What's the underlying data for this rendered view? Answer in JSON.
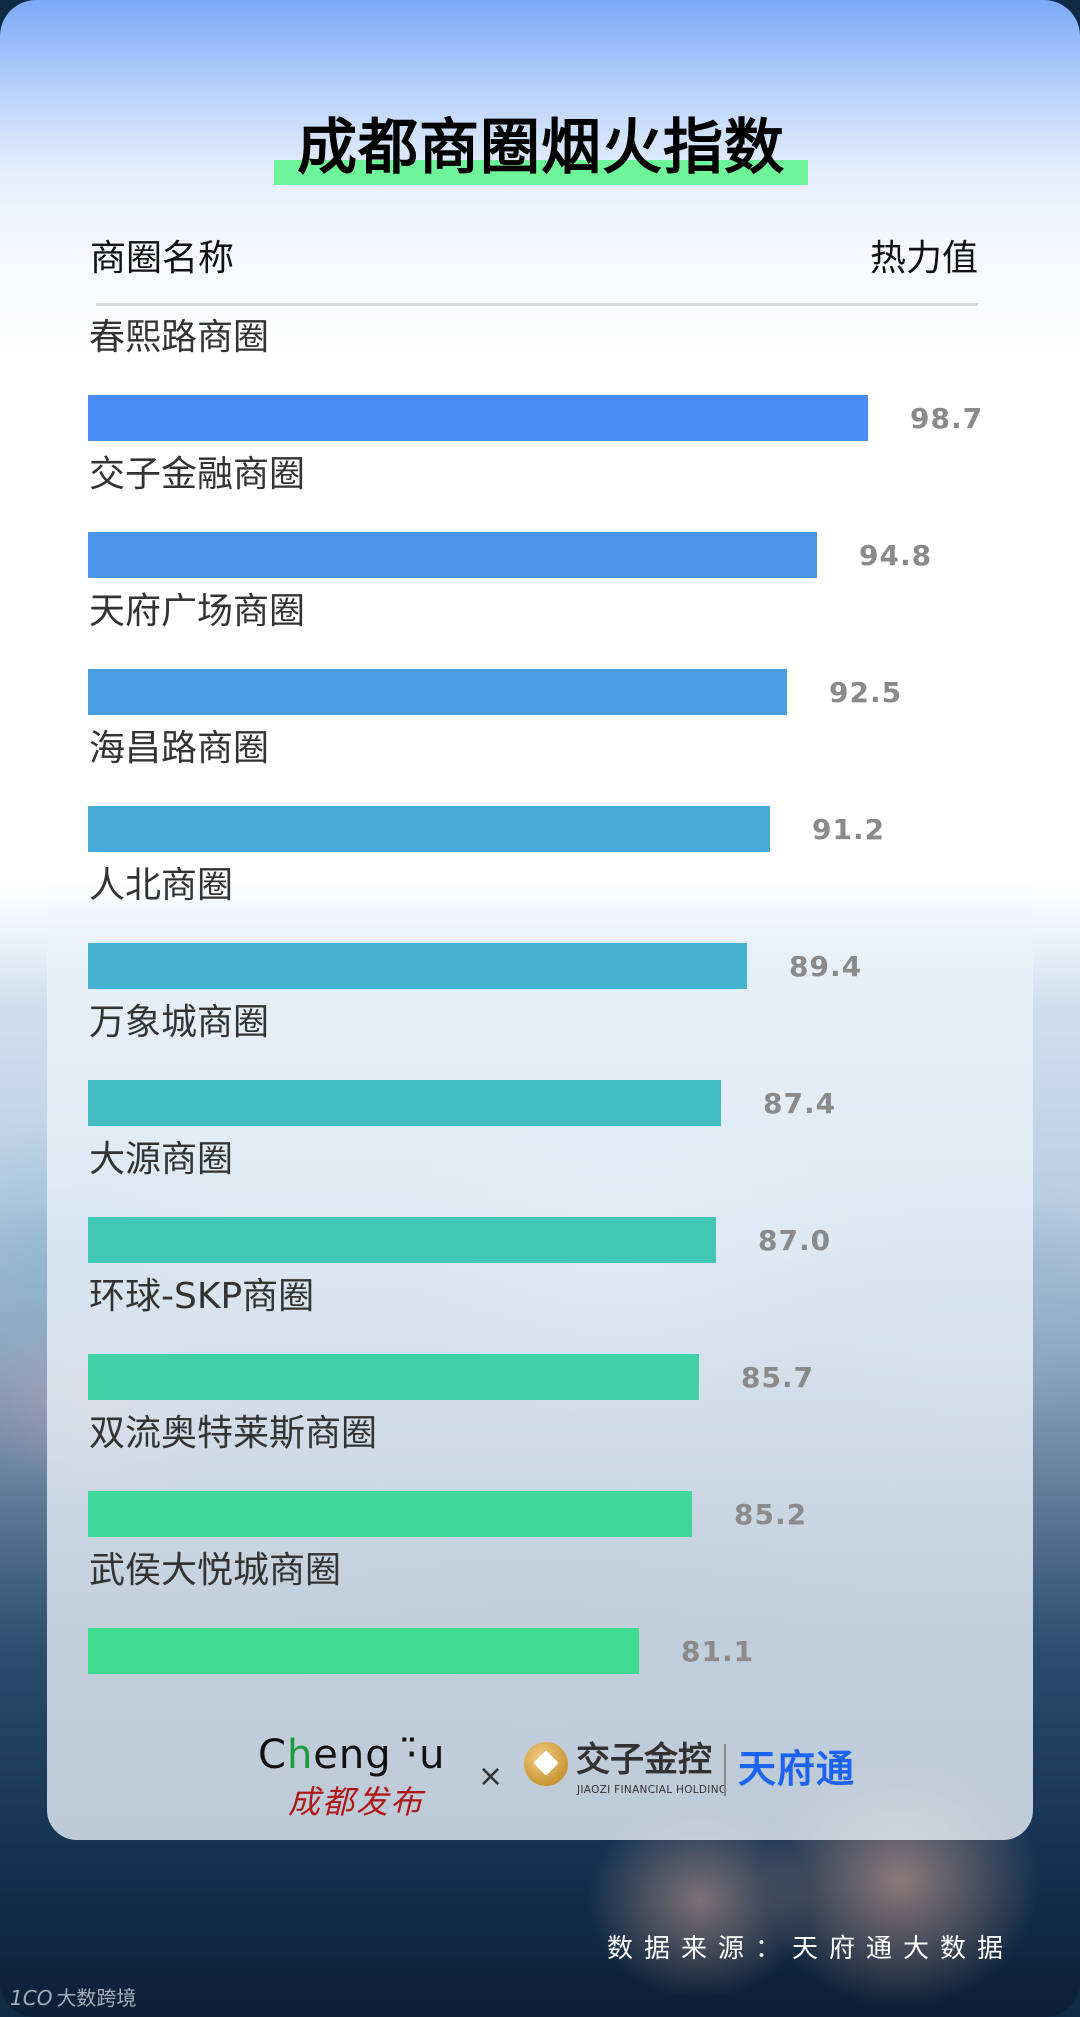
{
  "title": "成都商圈烟火指数",
  "header": {
    "name_col": "商圈名称",
    "value_col": "热力值"
  },
  "rows": [
    {
      "name": "春熙路商圈",
      "value": "98.7",
      "color": "#4a8cf5"
    },
    {
      "name": "交子金融商圈",
      "value": "94.8",
      "color": "#4a94ea"
    },
    {
      "name": "天府广场商圈",
      "value": "92.5",
      "color": "#4a9fe3"
    },
    {
      "name": "海昌路商圈",
      "value": "91.2",
      "color": "#47a9d8"
    },
    {
      "name": "人北商圈",
      "value": "89.4",
      "color": "#45b2cf"
    },
    {
      "name": "万象城商圈",
      "value": "87.4",
      "color": "#43bdc2"
    },
    {
      "name": "大源商圈",
      "value": "87.0",
      "color": "#40c7b6"
    },
    {
      "name": "环球-SKP商圈",
      "value": "85.7",
      "color": "#3fd0a4"
    },
    {
      "name": "双流奥特莱斯商圈",
      "value": "85.2",
      "color": "#3fd89a"
    },
    {
      "name": "武侯大悦城商圈",
      "value": "81.1",
      "color": "#3fdb90"
    }
  ],
  "logos": {
    "chengdu_en_prefix": "C",
    "chengdu_en_h": "h",
    "chengdu_en_rest": "eng ·̈u",
    "chengdu_cn": "成都发布",
    "times": "×",
    "jiaozi_name": "交子金控",
    "jiaozi_sub": "JIAOZI FINANCIAL HOLDING",
    "tianfutong": "天府通"
  },
  "footer": {
    "source": "数据来源：天府通大数据"
  },
  "watermark": {
    "logo": "1CO",
    "text": "大数跨境"
  },
  "chart_data": {
    "type": "bar",
    "orientation": "horizontal",
    "title": "成都商圈烟火指数",
    "xlabel": "热力值",
    "ylabel": "商圈名称",
    "categories": [
      "春熙路商圈",
      "交子金融商圈",
      "天府广场商圈",
      "海昌路商圈",
      "人北商圈",
      "万象城商圈",
      "大源商圈",
      "环球-SKP商圈",
      "双流奥特莱斯商圈",
      "武侯大悦城商圈"
    ],
    "values": [
      98.7,
      94.8,
      92.5,
      91.2,
      89.4,
      87.4,
      87.0,
      85.7,
      85.2,
      81.1
    ],
    "grid": false,
    "legend": "none",
    "data_labels": true,
    "source": "数据来源：天府通大数据"
  }
}
